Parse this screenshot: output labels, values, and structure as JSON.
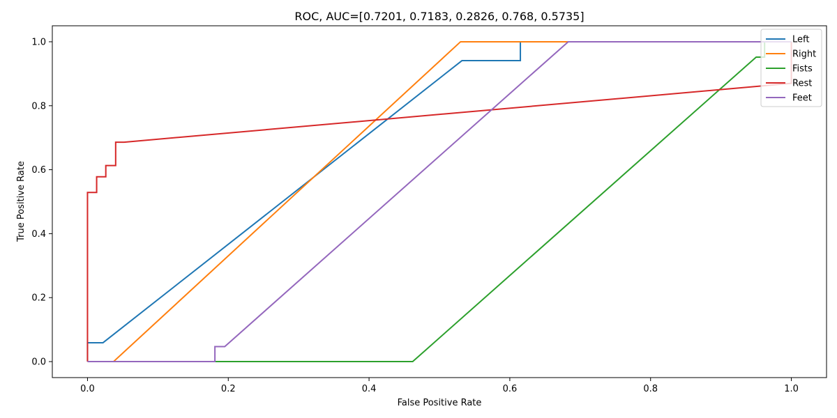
{
  "chart_data": {
    "type": "line",
    "title": "ROC, AUC=[0.7201, 0.7183, 0.2826, 0.768, 0.5735]",
    "xlabel": "False Positive Rate",
    "ylabel": "True Positive Rate",
    "xlim": [
      -0.05,
      1.05
    ],
    "ylim": [
      -0.05,
      1.05
    ],
    "xticks": [
      "0.0",
      "0.2",
      "0.4",
      "0.6",
      "0.8",
      "1.0"
    ],
    "yticks": [
      "0.0",
      "0.2",
      "0.4",
      "0.6",
      "0.8",
      "1.0"
    ],
    "grid": false,
    "legend_position": "top-right",
    "series": [
      {
        "name": "Left",
        "color": "#1f77b4",
        "points": [
          [
            0,
            0
          ],
          [
            0,
            0.059
          ],
          [
            0.022,
            0.059
          ],
          [
            0.532,
            0.941
          ],
          [
            0.615,
            0.941
          ],
          [
            0.615,
            1.0
          ],
          [
            1.0,
            1.0
          ]
        ]
      },
      {
        "name": "Right",
        "color": "#ff7f0e",
        "points": [
          [
            0,
            0
          ],
          [
            0.037,
            0
          ],
          [
            0.53,
            1.0
          ],
          [
            1.0,
            1.0
          ]
        ]
      },
      {
        "name": "Fists",
        "color": "#2ca02c",
        "points": [
          [
            0,
            0
          ],
          [
            0.462,
            0
          ],
          [
            0.95,
            0.952
          ],
          [
            0.962,
            0.952
          ],
          [
            0.962,
            1.0
          ],
          [
            1.0,
            1.0
          ]
        ]
      },
      {
        "name": "Rest",
        "color": "#d62728",
        "points": [
          [
            0,
            0
          ],
          [
            0,
            0.529
          ],
          [
            0.013,
            0.529
          ],
          [
            0.013,
            0.578
          ],
          [
            0.026,
            0.578
          ],
          [
            0.026,
            0.613
          ],
          [
            0.04,
            0.613
          ],
          [
            0.04,
            0.686
          ],
          [
            0.052,
            0.686
          ],
          [
            1.0,
            0.87
          ],
          [
            1.0,
            1.0
          ]
        ]
      },
      {
        "name": "Feet",
        "color": "#9467bd",
        "points": [
          [
            0,
            0
          ],
          [
            0.181,
            0
          ],
          [
            0.181,
            0.047
          ],
          [
            0.195,
            0.047
          ],
          [
            0.683,
            1.0
          ],
          [
            1.0,
            1.0
          ]
        ]
      }
    ]
  }
}
